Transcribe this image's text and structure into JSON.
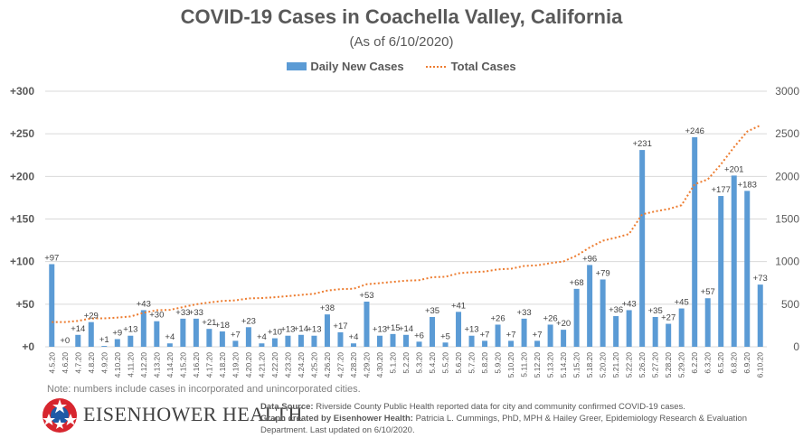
{
  "chart_data": {
    "type": "bar",
    "title": "COVID-19 Cases in Coachella Valley, California",
    "subtitle": "(As of 6/10/2020)",
    "xlabel": "",
    "ylabel": "",
    "ylim": [
      0,
      300
    ],
    "y2lim": [
      0,
      3000
    ],
    "grid": true,
    "legend_position": "top-center",
    "y_ticks": [
      "+0",
      "+50",
      "+100",
      "+150",
      "+200",
      "+250",
      "+300"
    ],
    "y_tick_values": [
      0,
      50,
      100,
      150,
      200,
      250,
      300
    ],
    "y2_ticks": [
      "0",
      "500",
      "1000",
      "1500",
      "2000",
      "2500",
      "3000"
    ],
    "y2_tick_values": [
      0,
      500,
      1000,
      1500,
      2000,
      2500,
      3000
    ],
    "categories": [
      "4.5.20",
      "4.6.20",
      "4.7.20",
      "4.8.20",
      "4.9.20",
      "4.10.20",
      "4.11.20",
      "4.12.20",
      "4.13.20",
      "4.14.20",
      "4.15.20",
      "4.16.20",
      "4.17.20",
      "4.18.20",
      "4.19.20",
      "4.20.20",
      "4.21.20",
      "4.22.20",
      "4.23.20",
      "4.24.20",
      "4.25.20",
      "4.26.20",
      "4.27.20",
      "4.28.20",
      "4.29.20",
      "4.30.20",
      "5.1.20",
      "5.2.20",
      "5.3.20",
      "5.4.20",
      "5.5.20",
      "5.6.20",
      "5.7.20",
      "5.8.20",
      "5.9.20",
      "5.10.20",
      "5.11.20",
      "5.12.20",
      "5.13.20",
      "5.14.20",
      "5.15.20",
      "5.18.20",
      "5.20.20",
      "5.21.20",
      "5.22.20",
      "5.26.20",
      "5.27.20",
      "5.28.20",
      "5.29.20",
      "6.2.20",
      "6.3.20",
      "6.5.20",
      "6.8.20",
      "6.9.20",
      "6.10.20"
    ],
    "series": [
      {
        "name": "Daily New Cases",
        "type": "bar",
        "axis": "left",
        "color": "#5b9bd5",
        "values": [
          97,
          0,
          14,
          29,
          1,
          9,
          13,
          43,
          30,
          4,
          33,
          33,
          21,
          18,
          7,
          23,
          4,
          10,
          13,
          14,
          13,
          38,
          17,
          4,
          53,
          13,
          15,
          14,
          6,
          35,
          5,
          41,
          13,
          7,
          26,
          7,
          33,
          7,
          26,
          20,
          68,
          96,
          79,
          36,
          43,
          231,
          35,
          27,
          45,
          246,
          57,
          177,
          201,
          183,
          73
        ],
        "labels": [
          "+97",
          "+0",
          "+14",
          "+29",
          "+1",
          "+9",
          "+13",
          "+43",
          "+30",
          "+4",
          "+33",
          "+33",
          "+21",
          "+18",
          "+7",
          "+23",
          "+4",
          "+10",
          "+13",
          "+14",
          "+13",
          "+38",
          "+17",
          "+4",
          "+53",
          "+13",
          "+15",
          "+14",
          "+6",
          "+35",
          "+5",
          "+41",
          "+13",
          "+7",
          "+26",
          "+7",
          "+33",
          "+7",
          "+26",
          "+20",
          "+68",
          "+96",
          "+79",
          "+36",
          "+43",
          "+231",
          "+35",
          "+27",
          "+45",
          "+246",
          "+57",
          "+177",
          "+201",
          "+183",
          "+73"
        ]
      },
      {
        "name": "Total Cases",
        "type": "line",
        "axis": "right",
        "color": "#ed7d31",
        "values": [
          290,
          290,
          304,
          333,
          334,
          343,
          356,
          399,
          429,
          433,
          466,
          499,
          520,
          538,
          545,
          568,
          572,
          582,
          595,
          609,
          622,
          660,
          677,
          681,
          734,
          747,
          762,
          776,
          782,
          817,
          822,
          863,
          876,
          883,
          909,
          916,
          949,
          956,
          982,
          1002,
          1070,
          1166,
          1245,
          1281,
          1324,
          1555,
          1590,
          1617,
          1662,
          1908,
          1965,
          2142,
          2343,
          2526,
          2599
        ]
      }
    ]
  },
  "legend": {
    "bar_label": "Daily New Cases",
    "line_label": "Total Cases"
  },
  "footer": {
    "note": "Note: numbers include cases in incorporated and unincorporated cities.",
    "logo_text": "EISENHOWER HEALTH",
    "source_label": "Data Source:",
    "source_text": " Riverside County Public Health reported data for city and community confirmed COVID-19 cases.",
    "credit_label": "Graph created by Eisenhower Health:",
    "credit_text": " Patricia L. Cummings, PhD, MPH & Hailey Greer, Epidemiology Research & Evaluation Department. Last updated on 6/10/2020."
  }
}
